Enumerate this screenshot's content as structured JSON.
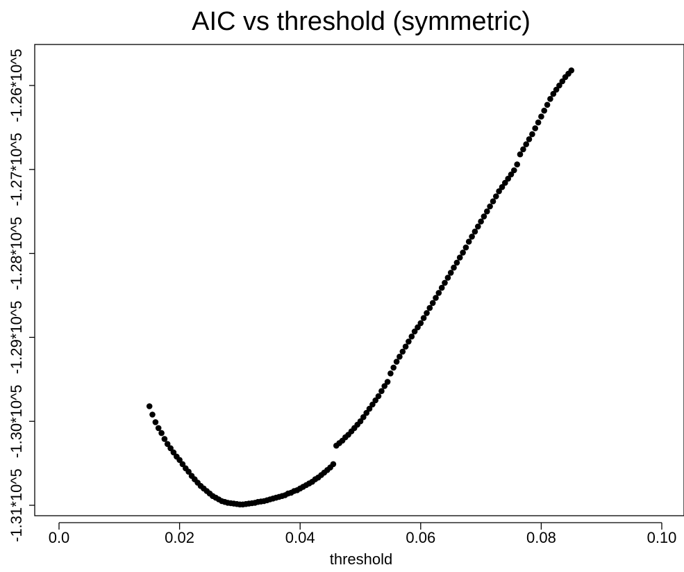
{
  "chart_data": {
    "type": "scatter",
    "title": "AIC vs threshold (symmetric)",
    "xlabel": "threshold",
    "ylabel": "",
    "xlim": [
      0.0,
      0.105
    ],
    "ylim": [
      -131100,
      -125800
    ],
    "grid": false,
    "legend": "none",
    "point_color": "#000000",
    "xticks": [
      0.0,
      0.02,
      0.04,
      0.06,
      0.08,
      0.1
    ],
    "xtick_labels": [
      "0.0",
      "0.02",
      "0.04",
      "0.06",
      "0.08",
      "0.10"
    ],
    "yticks": [
      -131000,
      -130000,
      -129000,
      -128000,
      -127000,
      -126000
    ],
    "ytick_labels": [
      "-1.31*10^5",
      "-1.30*10^5",
      "-1.29*10^5",
      "-1.28*10^5",
      "-1.27*10^5",
      "-1.26*10^5"
    ],
    "series": [
      {
        "x": [
          0.015,
          0.0155,
          0.016,
          0.0165,
          0.017,
          0.0175,
          0.018,
          0.0185,
          0.019,
          0.0195,
          0.02,
          0.0205,
          0.021,
          0.0215,
          0.022,
          0.0225,
          0.023,
          0.0235,
          0.024,
          0.0245,
          0.025,
          0.0255,
          0.026,
          0.0265,
          0.027,
          0.0275,
          0.028,
          0.0285,
          0.029,
          0.0295,
          0.03,
          0.0305,
          0.031,
          0.0315,
          0.032,
          0.0325,
          0.033,
          0.0335,
          0.034,
          0.0345,
          0.035,
          0.0355,
          0.036,
          0.0365,
          0.037,
          0.0375,
          0.038,
          0.0385,
          0.039,
          0.0395,
          0.04,
          0.0405,
          0.041,
          0.0415,
          0.042,
          0.0425,
          0.043,
          0.0435,
          0.044,
          0.0445,
          0.045,
          0.0455,
          0.046,
          0.0465,
          0.047,
          0.0475,
          0.048,
          0.0485,
          0.049,
          0.0495,
          0.05,
          0.0505,
          0.051,
          0.0515,
          0.052,
          0.0525,
          0.053,
          0.0535,
          0.054,
          0.0545,
          0.055,
          0.0555,
          0.056,
          0.0565,
          0.057,
          0.0575,
          0.058,
          0.0585,
          0.059,
          0.0595,
          0.06,
          0.0605,
          0.061,
          0.0615,
          0.062,
          0.0625,
          0.063,
          0.0635,
          0.064,
          0.0645,
          0.065,
          0.0655,
          0.066,
          0.0665,
          0.067,
          0.0675,
          0.068,
          0.0685,
          0.069,
          0.0695,
          0.07,
          0.0705,
          0.071,
          0.0715,
          0.072,
          0.0725,
          0.073,
          0.0735,
          0.074,
          0.0745,
          0.075,
          0.0755,
          0.076,
          0.0765,
          0.077,
          0.0775,
          0.078,
          0.0785,
          0.079,
          0.0795,
          0.08,
          0.0805,
          0.081,
          0.0815,
          0.082,
          0.0825,
          0.083,
          0.0835,
          0.084,
          0.0845,
          0.085
        ],
        "y": [
          -129820,
          -129920,
          -130010,
          -130080,
          -130140,
          -130210,
          -130270,
          -130320,
          -130370,
          -130420,
          -130460,
          -130510,
          -130560,
          -130600,
          -130650,
          -130690,
          -130730,
          -130770,
          -130800,
          -130830,
          -130860,
          -130890,
          -130910,
          -130930,
          -130950,
          -130960,
          -130970,
          -130975,
          -130980,
          -130985,
          -130990,
          -130990,
          -130985,
          -130980,
          -130975,
          -130970,
          -130960,
          -130955,
          -130950,
          -130940,
          -130930,
          -130920,
          -130910,
          -130900,
          -130890,
          -130880,
          -130860,
          -130850,
          -130830,
          -130820,
          -130800,
          -130780,
          -130760,
          -130740,
          -130720,
          -130690,
          -130670,
          -130640,
          -130610,
          -130580,
          -130550,
          -130510,
          -130290,
          -130260,
          -130230,
          -130190,
          -130160,
          -130120,
          -130080,
          -130040,
          -130000,
          -129950,
          -129900,
          -129850,
          -129800,
          -129750,
          -129700,
          -129640,
          -129580,
          -129530,
          -129430,
          -129360,
          -129290,
          -129230,
          -129170,
          -129110,
          -129050,
          -128990,
          -128930,
          -128880,
          -128830,
          -128770,
          -128710,
          -128650,
          -128590,
          -128530,
          -128470,
          -128410,
          -128350,
          -128290,
          -128230,
          -128170,
          -128110,
          -128050,
          -127990,
          -127930,
          -127860,
          -127800,
          -127740,
          -127680,
          -127620,
          -127560,
          -127500,
          -127440,
          -127380,
          -127320,
          -127260,
          -127210,
          -127160,
          -127110,
          -127060,
          -127010,
          -126940,
          -126820,
          -126760,
          -126700,
          -126640,
          -126580,
          -126510,
          -126440,
          -126370,
          -126300,
          -126230,
          -126160,
          -126100,
          -126050,
          -126000,
          -125950,
          -125900,
          -125860,
          -125820
        ]
      }
    ]
  }
}
